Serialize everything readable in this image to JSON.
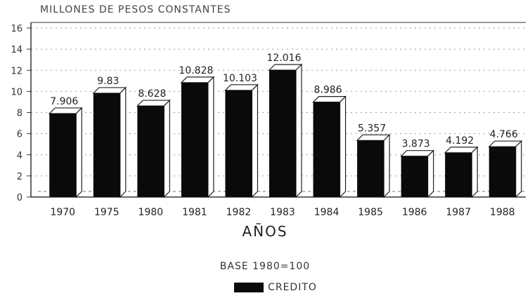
{
  "chart_data": {
    "type": "bar",
    "title": "MILLONES DE PESOS CONSTANTES",
    "subtitle": "BASE 1980=100",
    "xlabel": "AÑOS",
    "ylabel": "",
    "categories": [
      "1970",
      "1975",
      "1980",
      "1981",
      "1982",
      "1983",
      "1984",
      "1985",
      "1986",
      "1987",
      "1988"
    ],
    "series": [
      {
        "name": "CREDITO",
        "values": [
          7.906,
          9.83,
          8.628,
          10.828,
          10.103,
          12.016,
          8.986,
          5.357,
          3.873,
          4.192,
          4.766
        ]
      }
    ],
    "data_labels": [
      "7.906",
      "9.83",
      "8.628",
      "10.828",
      "10.103",
      "12.016",
      "8.986",
      "5.357",
      "3.873",
      "4.192",
      "4.766"
    ],
    "ylim": [
      0,
      16
    ],
    "yticks": [
      0,
      2,
      4,
      6,
      8,
      10,
      12,
      14,
      16
    ],
    "grid": true,
    "legend_position": "bottom",
    "colors": {
      "bar": "#0a0a0a",
      "axis": "#333333"
    }
  }
}
